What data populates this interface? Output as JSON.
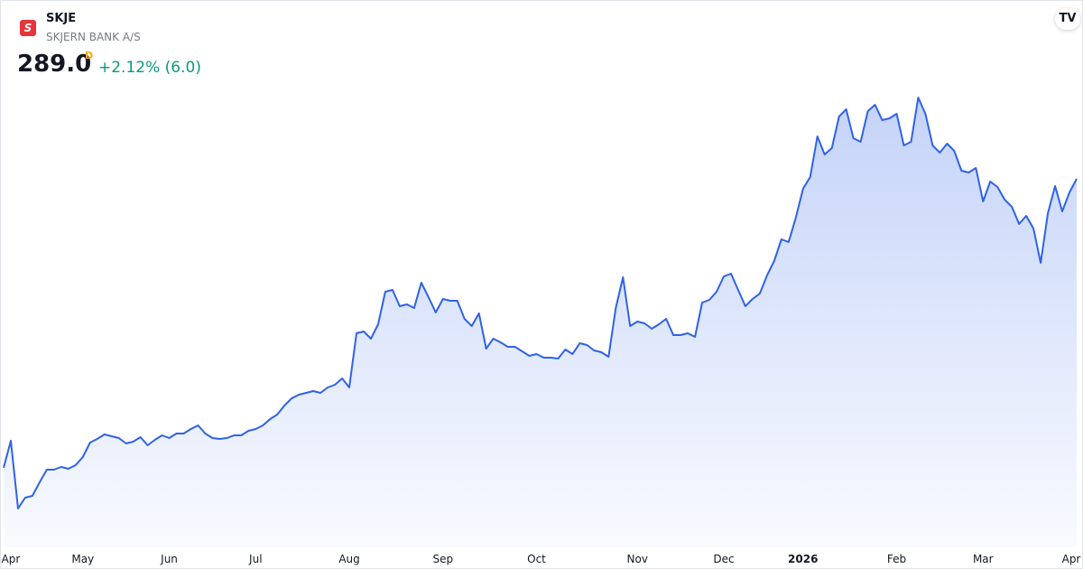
{
  "header": {
    "symbol": "SKJE",
    "name": "SKJERN BANK A/S",
    "price": "289.0",
    "interval": "D",
    "change": "+2.12% (6.0)"
  },
  "chart_data": {
    "type": "area",
    "color": "#2f62e8",
    "values": [
      161.0,
      173.0,
      143.0,
      147.8,
      148.6,
      154.6,
      160.2,
      160.2,
      161.4,
      160.6,
      162.2,
      165.8,
      172.2,
      173.8,
      175.8,
      175.0,
      174.2,
      171.8,
      172.6,
      174.6,
      171.0,
      173.4,
      175.4,
      174.2,
      176.2,
      176.2,
      178.2,
      179.8,
      176.2,
      174.2,
      173.8,
      174.2,
      175.4,
      175.4,
      177.4,
      178.2,
      179.8,
      182.6,
      184.6,
      188.6,
      191.8,
      193.4,
      194.2,
      195.0,
      194.2,
      196.6,
      197.8,
      200.6,
      196.6,
      220.6,
      221.4,
      218.2,
      224.6,
      239.0,
      239.8,
      232.6,
      233.4,
      231.8,
      243.0,
      236.6,
      229.8,
      235.8,
      235.0,
      235.0,
      227.0,
      223.8,
      229.4,
      213.8,
      218.2,
      216.6,
      214.6,
      214.6,
      212.6,
      210.6,
      211.4,
      209.8,
      209.8,
      209.4,
      213.4,
      211.4,
      216.2,
      215.4,
      213.0,
      212.2,
      210.2,
      231.8,
      245.4,
      223.8,
      225.8,
      225.0,
      222.6,
      224.6,
      227.0,
      219.8,
      219.8,
      220.6,
      219.0,
      234.2,
      235.4,
      239.0,
      245.8,
      247.0,
      239.8,
      232.6,
      235.8,
      238.2,
      246.2,
      252.6,
      262.2,
      261.0,
      271.8,
      284.6,
      289.8,
      307.8,
      299.8,
      302.6,
      316.6,
      319.8,
      307.0,
      305.4,
      319.0,
      321.8,
      315.0,
      315.8,
      317.8,
      303.8,
      305.4,
      325.0,
      317.8,
      303.8,
      300.6,
      304.6,
      301.4,
      292.6,
      291.8,
      293.8,
      279.0,
      287.8,
      285.4,
      279.8,
      276.6,
      269.0,
      272.6,
      267.0,
      251.8,
      273.8,
      285.8,
      274.6,
      283.0,
      289.0
    ],
    "xlim": [
      0,
      149
    ],
    "ylim": [
      127.8,
      367.8
    ],
    "xticks": [
      {
        "value": 1,
        "label": "Apr"
      },
      {
        "value": 11,
        "label": "May"
      },
      {
        "value": 23,
        "label": "Jun"
      },
      {
        "value": 35,
        "label": "Jul"
      },
      {
        "value": 48,
        "label": "Aug"
      },
      {
        "value": 61,
        "label": "Sep"
      },
      {
        "value": 74,
        "label": "Oct"
      },
      {
        "value": 88,
        "label": "Nov"
      },
      {
        "value": 100,
        "label": "Dec"
      },
      {
        "value": 111,
        "label": "2026"
      },
      {
        "value": 124,
        "label": "Feb"
      },
      {
        "value": 136,
        "label": "Mar"
      },
      {
        "value": 149,
        "label": "Apr"
      }
    ]
  }
}
